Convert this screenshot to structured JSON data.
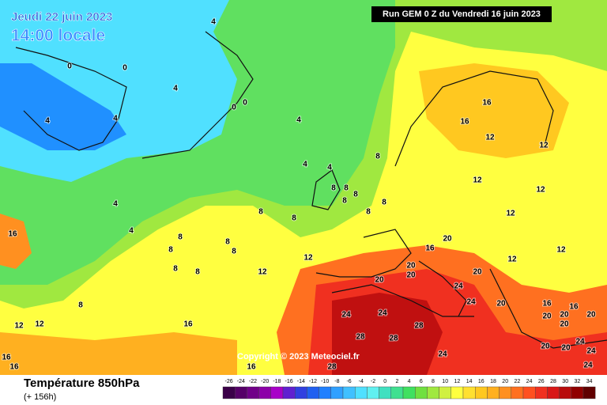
{
  "header": {
    "date": "Jeudi 22 juin 2023",
    "time": "14:00 locale",
    "run": "Run GEM 0 Z du Vendredi 16 juin 2023"
  },
  "copyright": "Copyright © 2023 Meteociel.fr",
  "footer": {
    "title": "Température 850hPa",
    "lead": "(+ 156h)"
  },
  "legend": {
    "ticks": [
      -26,
      -24,
      -22,
      -20,
      -18,
      -16,
      -14,
      -12,
      -10,
      -8,
      -6,
      -4,
      -2,
      0,
      2,
      4,
      6,
      8,
      10,
      12,
      14,
      16,
      18,
      20,
      22,
      24,
      26,
      28,
      30,
      32,
      34
    ],
    "colors": [
      "#3a0048",
      "#560068",
      "#700088",
      "#8c00a8",
      "#a800c8",
      "#6020d0",
      "#3040e0",
      "#2060f0",
      "#2080ff",
      "#30a0ff",
      "#40c0ff",
      "#50e0ff",
      "#60f0f0",
      "#40e0c0",
      "#40e090",
      "#40e060",
      "#70e040",
      "#a0e840",
      "#d0f040",
      "#ffff40",
      "#ffe030",
      "#ffc820",
      "#ffb020",
      "#ff9020",
      "#ff7020",
      "#ff5020",
      "#f03020",
      "#d81818",
      "#b80c0c",
      "#900000",
      "#600000"
    ]
  },
  "contour_labels": [
    4,
    0,
    0,
    4,
    0,
    0,
    4,
    4,
    4,
    4,
    4,
    4,
    4,
    8,
    8,
    8,
    8,
    8,
    8,
    8,
    8,
    8,
    8,
    8,
    8,
    8,
    8,
    8,
    8,
    12,
    12,
    12,
    12,
    16,
    16,
    16,
    16,
    12,
    12,
    12,
    12,
    12,
    12,
    12,
    20,
    16,
    20,
    20,
    20,
    20,
    20,
    24,
    24,
    24,
    24,
    28,
    28,
    28,
    24,
    28,
    16,
    16,
    16,
    20,
    20,
    20,
    20,
    20,
    20,
    24,
    24,
    16,
    16,
    24
  ]
}
